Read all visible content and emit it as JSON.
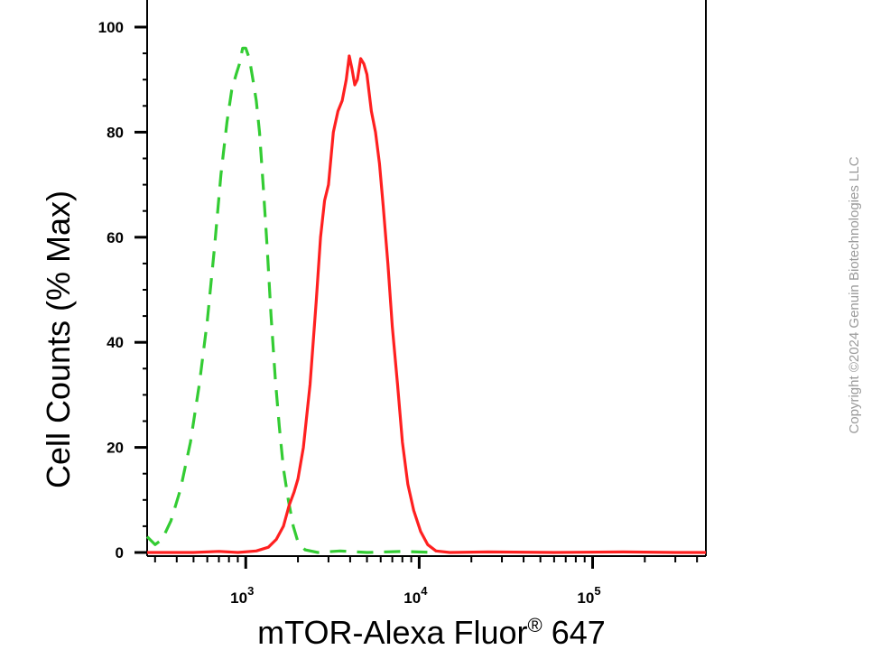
{
  "chart_data": {
    "type": "line",
    "xlabel_main": "mTOR-Alexa Fluor",
    "xlabel_sup": "®",
    "xlabel_tail": " 647",
    "ylabel": "Cell Counts (% Max)",
    "x_scale": "log",
    "xlim": [
      270,
      450000
    ],
    "ylim": [
      0,
      100
    ],
    "y_ticks": [
      0,
      20,
      40,
      60,
      80,
      100
    ],
    "x_major_ticks": [
      {
        "value": 1000,
        "base": "10",
        "exp": "3"
      },
      {
        "value": 10000,
        "base": "10",
        "exp": "4"
      },
      {
        "value": 100000,
        "base": "10",
        "exp": "5"
      }
    ],
    "grid": false,
    "series": [
      {
        "color": "#33cc33",
        "dash": "dashed",
        "points": [
          [
            270,
            3
          ],
          [
            300,
            1.5
          ],
          [
            330,
            2.5
          ],
          [
            370,
            6
          ],
          [
            420,
            12
          ],
          [
            480,
            21
          ],
          [
            540,
            32
          ],
          [
            600,
            44
          ],
          [
            660,
            58
          ],
          [
            720,
            72
          ],
          [
            780,
            82
          ],
          [
            830,
            88
          ],
          [
            880,
            91
          ],
          [
            920,
            93
          ],
          [
            960,
            96
          ],
          [
            1000,
            96
          ],
          [
            1050,
            94
          ],
          [
            1100,
            90
          ],
          [
            1150,
            86
          ],
          [
            1200,
            80
          ],
          [
            1260,
            70
          ],
          [
            1330,
            58
          ],
          [
            1400,
            45
          ],
          [
            1480,
            33
          ],
          [
            1560,
            24
          ],
          [
            1650,
            16
          ],
          [
            1760,
            10
          ],
          [
            1880,
            5
          ],
          [
            2000,
            2
          ],
          [
            2200,
            0.5
          ],
          [
            2600,
            0
          ],
          [
            3500,
            0.3
          ],
          [
            5000,
            0
          ],
          [
            8000,
            0.2
          ],
          [
            12000,
            0
          ]
        ]
      },
      {
        "color": "#ff2020",
        "dash": "solid",
        "points": [
          [
            270,
            0
          ],
          [
            500,
            0
          ],
          [
            700,
            0.2
          ],
          [
            900,
            0
          ],
          [
            1150,
            0.3
          ],
          [
            1350,
            1
          ],
          [
            1500,
            2.5
          ],
          [
            1650,
            5
          ],
          [
            1780,
            9
          ],
          [
            1900,
            11.5
          ],
          [
            2000,
            14
          ],
          [
            2150,
            20
          ],
          [
            2350,
            32
          ],
          [
            2550,
            48
          ],
          [
            2700,
            60
          ],
          [
            2850,
            67
          ],
          [
            3000,
            70
          ],
          [
            3200,
            80
          ],
          [
            3400,
            84
          ],
          [
            3600,
            86
          ],
          [
            3800,
            90
          ],
          [
            3950,
            94.5
          ],
          [
            4100,
            92
          ],
          [
            4250,
            89
          ],
          [
            4400,
            90
          ],
          [
            4600,
            94
          ],
          [
            4800,
            93
          ],
          [
            5000,
            91
          ],
          [
            5300,
            84
          ],
          [
            5600,
            80
          ],
          [
            5900,
            74
          ],
          [
            6200,
            66
          ],
          [
            6600,
            55
          ],
          [
            7000,
            43
          ],
          [
            7500,
            32
          ],
          [
            8000,
            21
          ],
          [
            8600,
            13
          ],
          [
            9300,
            8
          ],
          [
            10200,
            4
          ],
          [
            11200,
            1.5
          ],
          [
            12500,
            0.3
          ],
          [
            15000,
            0
          ],
          [
            25000,
            0.1
          ],
          [
            60000,
            0
          ],
          [
            150000,
            0.1
          ],
          [
            300000,
            0
          ],
          [
            450000,
            0
          ]
        ]
      }
    ]
  },
  "watermark": "Copyright ©2024 Genuin Biotechnologies LLC"
}
